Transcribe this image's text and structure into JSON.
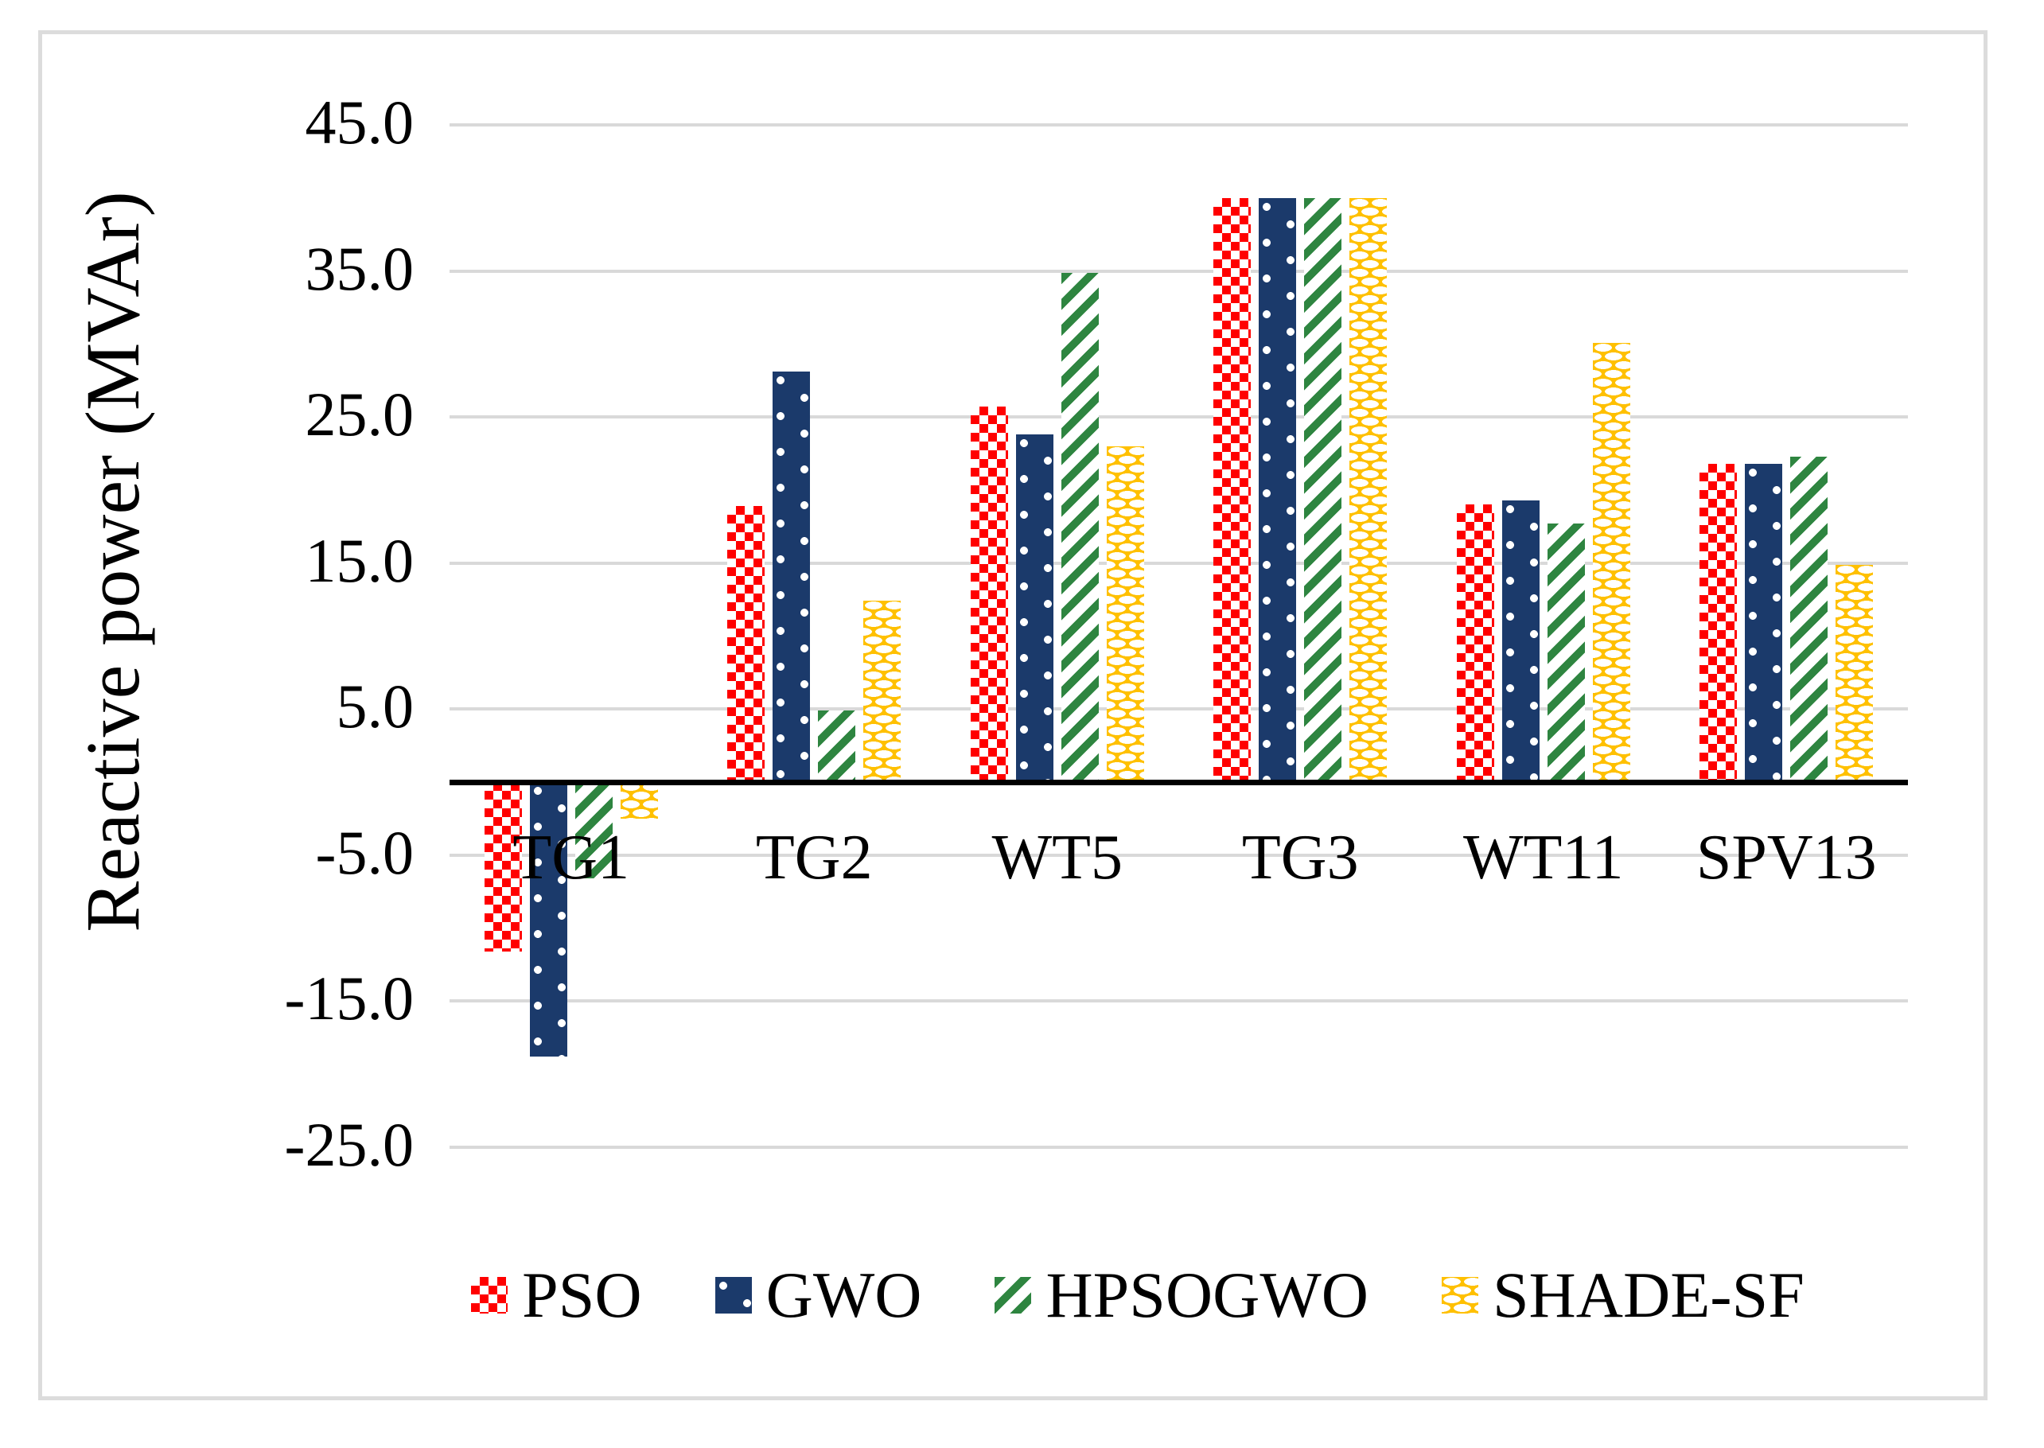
{
  "figure": {
    "background": "#ffffff",
    "frame_color": "#dcdcdc",
    "gridline_color": "#d9d9d9",
    "axis_line_color": "#000000"
  },
  "chart_data": {
    "type": "bar",
    "title": "",
    "xlabel": "",
    "ylabel": "Reactive power (MVAr)",
    "categories": [
      "TG1",
      "TG2",
      "WT5",
      "TG3",
      "WT11",
      "SPV13"
    ],
    "series": [
      {
        "name": "PSO",
        "pattern": "checker",
        "color": "#ff0000",
        "values": [
          -11.6,
          18.9,
          25.7,
          40.0,
          19.0,
          21.8
        ]
      },
      {
        "name": "GWO",
        "pattern": "dots",
        "color": "#1b3a6b",
        "values": [
          -18.8,
          28.1,
          23.8,
          40.0,
          19.3,
          21.8
        ]
      },
      {
        "name": "HPSOGWO",
        "pattern": "diag",
        "color": "#2e8540",
        "values": [
          -6.6,
          4.9,
          34.9,
          40.0,
          17.7,
          22.3
        ]
      },
      {
        "name": "SHADE-SF",
        "pattern": "dash",
        "color": "#ffc000",
        "values": [
          -2.5,
          12.4,
          23.0,
          40.0,
          30.1,
          14.9
        ]
      }
    ],
    "ylim": [
      -25,
      45
    ],
    "ytick_labels": [
      "45.0",
      "35.0",
      "25.0",
      "15.0",
      "5.0",
      "-5.0",
      "-15.0",
      "-25.0"
    ],
    "ytick_values": [
      45,
      35,
      25,
      15,
      5,
      -5,
      -15,
      -25
    ],
    "grid": true,
    "legend_position": "bottom"
  }
}
